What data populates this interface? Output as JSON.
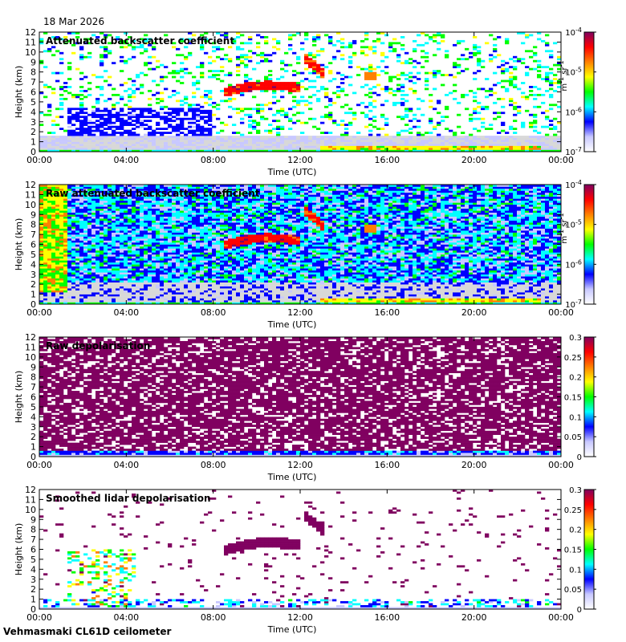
{
  "page": {
    "date": "18 Mar 2026",
    "footer_caption": "Vehmasmaki CL61D ceilometer"
  },
  "colors": {
    "colormap": [
      "#ffffff",
      "#c8c8ff",
      "#0000ff",
      "#00ffff",
      "#00ff00",
      "#ffff00",
      "#ff8000",
      "#ff0000",
      "#800060"
    ],
    "noise_gray": "#d8d8d8"
  },
  "chart_data": [
    {
      "type": "heatmap",
      "title": "Attenuated backscatter coefficient",
      "xlabel": "Time (UTC)",
      "ylabel": "Height (km)",
      "x_ticks": [
        "00:00",
        "04:00",
        "08:00",
        "12:00",
        "16:00",
        "20:00",
        "00:00"
      ],
      "xlim": [
        0,
        24
      ],
      "ylim": [
        0,
        12
      ],
      "y_ticks": [
        "0",
        "1",
        "2",
        "3",
        "4",
        "5",
        "6",
        "7",
        "8",
        "9",
        "10",
        "11",
        "12"
      ],
      "colorbar": {
        "scale": "log",
        "range": [
          1e-07,
          0.0001
        ],
        "ticks": [
          {
            "base": "10",
            "exp": "-4"
          },
          {
            "base": "10",
            "exp": "-5"
          },
          {
            "base": "10",
            "exp": "-6"
          },
          {
            "base": "10",
            "exp": "-7"
          }
        ],
        "unit": {
          "a": "m",
          "a_exp": "-1",
          "b": " sr",
          "b_exp": "-1"
        }
      }
    },
    {
      "type": "heatmap",
      "title": "Raw attenuated backscatter coefficient",
      "xlabel": "Time (UTC)",
      "ylabel": "Height (km)",
      "x_ticks": [
        "00:00",
        "04:00",
        "08:00",
        "12:00",
        "16:00",
        "20:00",
        "00:00"
      ],
      "xlim": [
        0,
        24
      ],
      "ylim": [
        0,
        12
      ],
      "y_ticks": [
        "0",
        "1",
        "2",
        "3",
        "4",
        "5",
        "6",
        "7",
        "8",
        "9",
        "10",
        "11",
        "12"
      ],
      "colorbar": {
        "scale": "log",
        "range": [
          1e-07,
          0.0001
        ],
        "ticks": [
          {
            "base": "10",
            "exp": "-4"
          },
          {
            "base": "10",
            "exp": "-5"
          },
          {
            "base": "10",
            "exp": "-6"
          },
          {
            "base": "10",
            "exp": "-7"
          }
        ],
        "unit": {
          "a": "m",
          "a_exp": "-1",
          "b": " sr",
          "b_exp": "-1"
        }
      }
    },
    {
      "type": "heatmap",
      "title": "Raw depolarisation",
      "xlabel": "Time (UTC)",
      "ylabel": "Height (km)",
      "x_ticks": [
        "00:00",
        "04:00",
        "08:00",
        "12:00",
        "16:00",
        "20:00",
        "00:00"
      ],
      "xlim": [
        0,
        24
      ],
      "ylim": [
        0,
        12
      ],
      "y_ticks": [
        "0",
        "1",
        "2",
        "3",
        "4",
        "5",
        "6",
        "7",
        "8",
        "9",
        "10",
        "11",
        "12"
      ],
      "colorbar": {
        "scale": "linear",
        "range": [
          0,
          0.3
        ],
        "ticks": [
          "0.3",
          "0.25",
          "0.2",
          "0.15",
          "0.1",
          "0.05",
          "0"
        ]
      }
    },
    {
      "type": "heatmap",
      "title": "Smoothed lidar depolarisation",
      "xlabel": "Time (UTC)",
      "ylabel": "Height (km)",
      "x_ticks": [
        "00:00",
        "04:00",
        "08:00",
        "12:00",
        "16:00",
        "20:00",
        "00:00"
      ],
      "xlim": [
        0,
        24
      ],
      "ylim": [
        0,
        12
      ],
      "y_ticks": [
        "0",
        "1",
        "2",
        "3",
        "4",
        "5",
        "6",
        "7",
        "8",
        "9",
        "10",
        "11",
        "12"
      ],
      "colorbar": {
        "scale": "linear",
        "range": [
          0,
          0.3
        ],
        "ticks": [
          "0.3",
          "0.25",
          "0.2",
          "0.15",
          "0.1",
          "0.05",
          "0"
        ]
      }
    }
  ]
}
